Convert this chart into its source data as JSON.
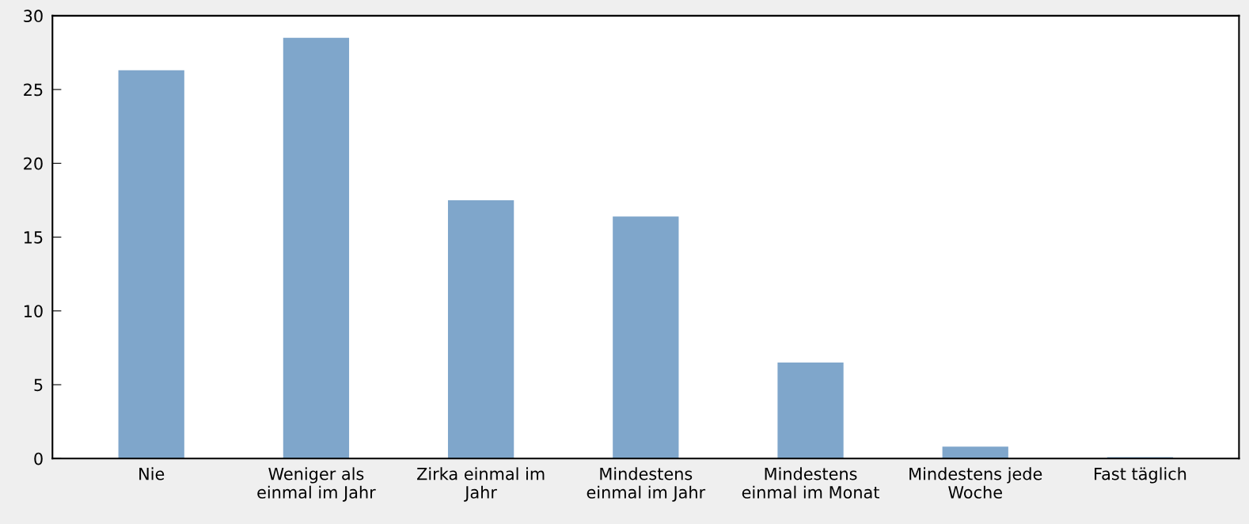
{
  "chart_data": {
    "type": "bar",
    "categories": [
      "Nie",
      "Weniger als\neinmal im Jahr",
      "Zirka einmal im\nJahr",
      "Mindestens\neinmal im Jahr",
      "Mindestens\neinmal im Monat",
      "Mindestens jede\nWoche",
      "Fast täglich"
    ],
    "values": [
      26.3,
      28.5,
      17.5,
      16.4,
      6.5,
      0.8,
      0.1
    ],
    "color": "#7fa6cb",
    "ylim": [
      0,
      30
    ],
    "yticks": [
      0,
      5,
      10,
      15,
      20,
      25,
      30
    ],
    "grid": false
  }
}
